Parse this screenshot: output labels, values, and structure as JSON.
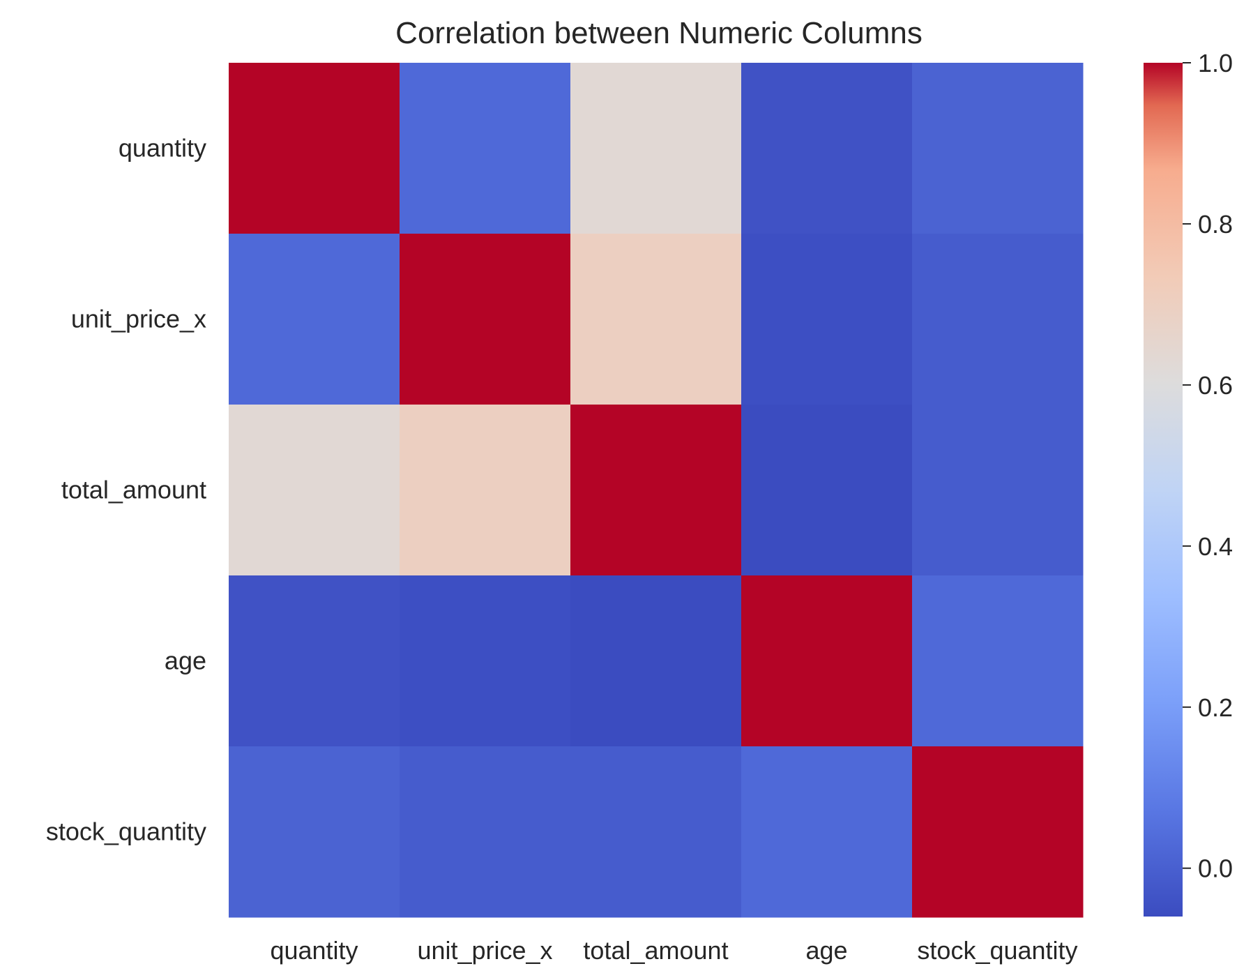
{
  "chart_data": {
    "type": "heatmap",
    "title": "Correlation between Numeric Columns",
    "xlabel": "",
    "ylabel": "",
    "x_categories": [
      "quantity",
      "unit_price_x",
      "total_amount",
      "age",
      "stock_quantity"
    ],
    "y_categories": [
      "quantity",
      "unit_price_x",
      "total_amount",
      "age",
      "stock_quantity"
    ],
    "values": [
      [
        1.0,
        0.03,
        0.63,
        -0.04,
        0.01
      ],
      [
        0.03,
        1.0,
        0.7,
        -0.05,
        -0.01
      ],
      [
        0.63,
        0.7,
        1.0,
        -0.06,
        -0.01
      ],
      [
        -0.04,
        -0.05,
        -0.06,
        1.0,
        0.03
      ],
      [
        0.01,
        -0.01,
        -0.01,
        0.03,
        1.0
      ]
    ],
    "colormap": "coolwarm",
    "vmin": -0.06,
    "vmax": 1.0,
    "colorbar": {
      "ticks": [
        "0.0",
        "0.2",
        "0.4",
        "0.6",
        "0.8",
        "1.0"
      ],
      "placement": "right"
    },
    "grid": false
  }
}
